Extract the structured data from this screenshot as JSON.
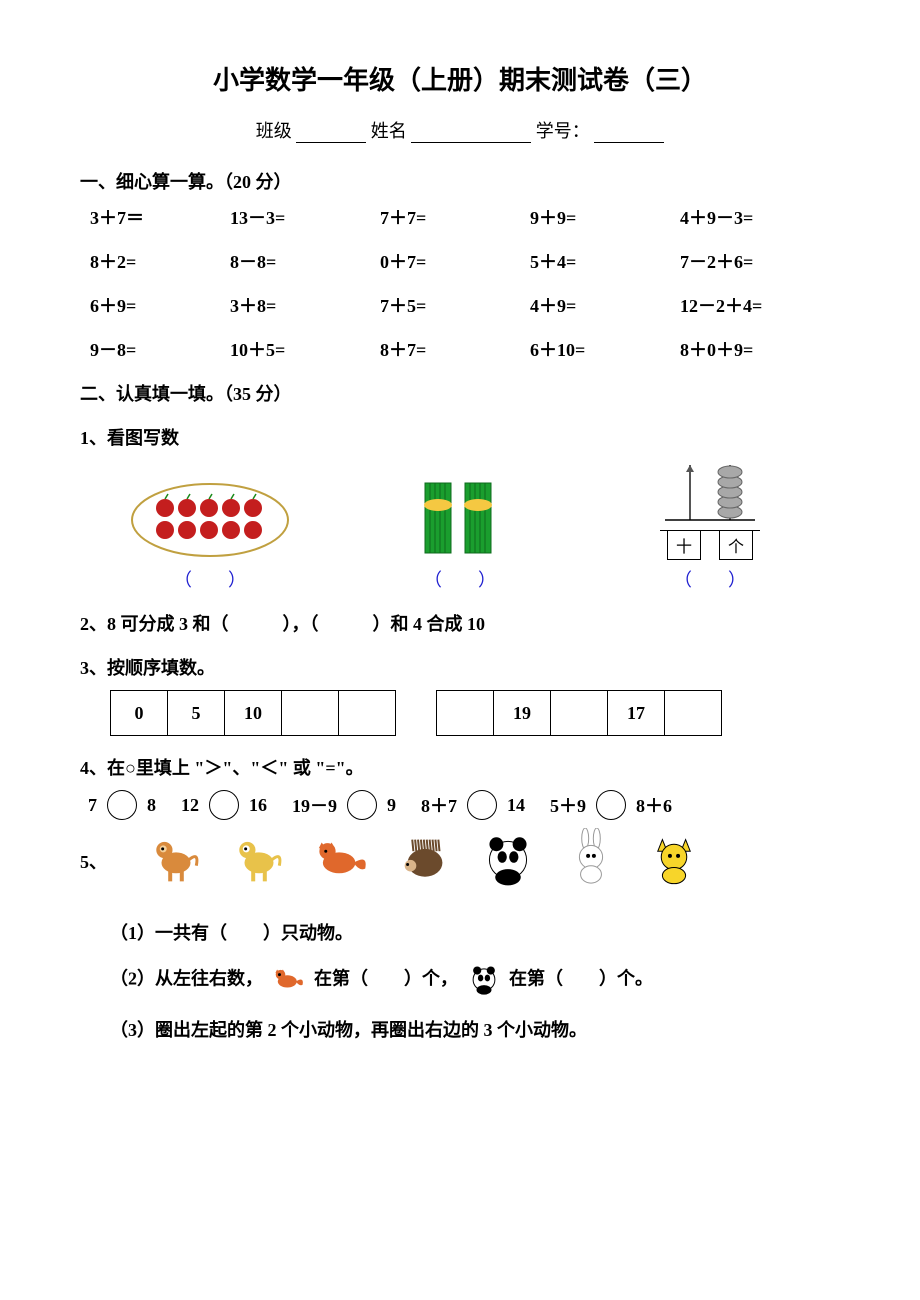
{
  "title": "小学数学一年级（上册）期末测试卷（三）",
  "info": {
    "class_label": "班级",
    "name_label": "姓名",
    "id_label": "学号："
  },
  "section1": {
    "heading": "一、细心算一算。（20 分）",
    "rows": [
      [
        "3＋7＝",
        "13－3=",
        "7＋7=",
        "9＋9=",
        "4＋9－3="
      ],
      [
        "8＋2=",
        "8－8=",
        "0＋7=",
        "5＋4=",
        "7－2＋6="
      ],
      [
        "6＋9=",
        "3＋8=",
        "7＋5=",
        "4＋9=",
        "12－2＋4="
      ],
      [
        "9－8=",
        "10＋5=",
        "8＋7=",
        "6＋10=",
        "8＋0＋9="
      ]
    ]
  },
  "section2": {
    "heading": "二、认真填一填。（35 分）",
    "q1_label": "1、看图写数",
    "paren": "（　　）",
    "apple_color": "#c41e1e",
    "stick_color": "#1a9e2e",
    "abacus": {
      "ten_label": "十",
      "one_label": "个",
      "bead_color": "#a8a8a8"
    },
    "q2_text_a": "2、8 可分成 3 和（　　　），（　　　）和 4 合成 10",
    "q3_label": "3、按顺序填数。",
    "seq_a": [
      "0",
      "5",
      "10",
      "",
      ""
    ],
    "seq_b": [
      "",
      "19",
      "",
      "17",
      ""
    ],
    "q4_label": "4、在○里填上 \"＞\"、\"＜\" 或 \"=\"。",
    "comp": {
      "a1": "7",
      "a2": "8",
      "b1": "12",
      "b2": "16",
      "c1": "19－9",
      "c2": "9",
      "d1": "8＋7",
      "d2": "14",
      "e1": "5＋9",
      "e2": "8＋6"
    },
    "q5_label": "5、",
    "animals": [
      {
        "name": "monkey",
        "body": "#d98a3c",
        "accent": "#f5d09a"
      },
      {
        "name": "dog",
        "body": "#e8c24a",
        "accent": "#fff"
      },
      {
        "name": "fox",
        "body": "#e0682c",
        "accent": "#fff"
      },
      {
        "name": "hedgehog",
        "body": "#6b4a2c",
        "accent": "#d9b48a"
      },
      {
        "name": "panda",
        "body": "#fff",
        "accent": "#000"
      },
      {
        "name": "rabbit",
        "body": "#fff",
        "accent": "#f7c0d8"
      },
      {
        "name": "cat",
        "body": "#f7d52a",
        "accent": "#000"
      }
    ],
    "q5_1": "（1）一共有（　　）只动物。",
    "q5_2a": "（2）从左往右数，",
    "q5_2b": "在第（　　）个，",
    "q5_2c": "在第（　　）个。",
    "q5_3": "（3）圈出左起的第 2 个小动物，再圈出右边的 3 个小动物。"
  }
}
